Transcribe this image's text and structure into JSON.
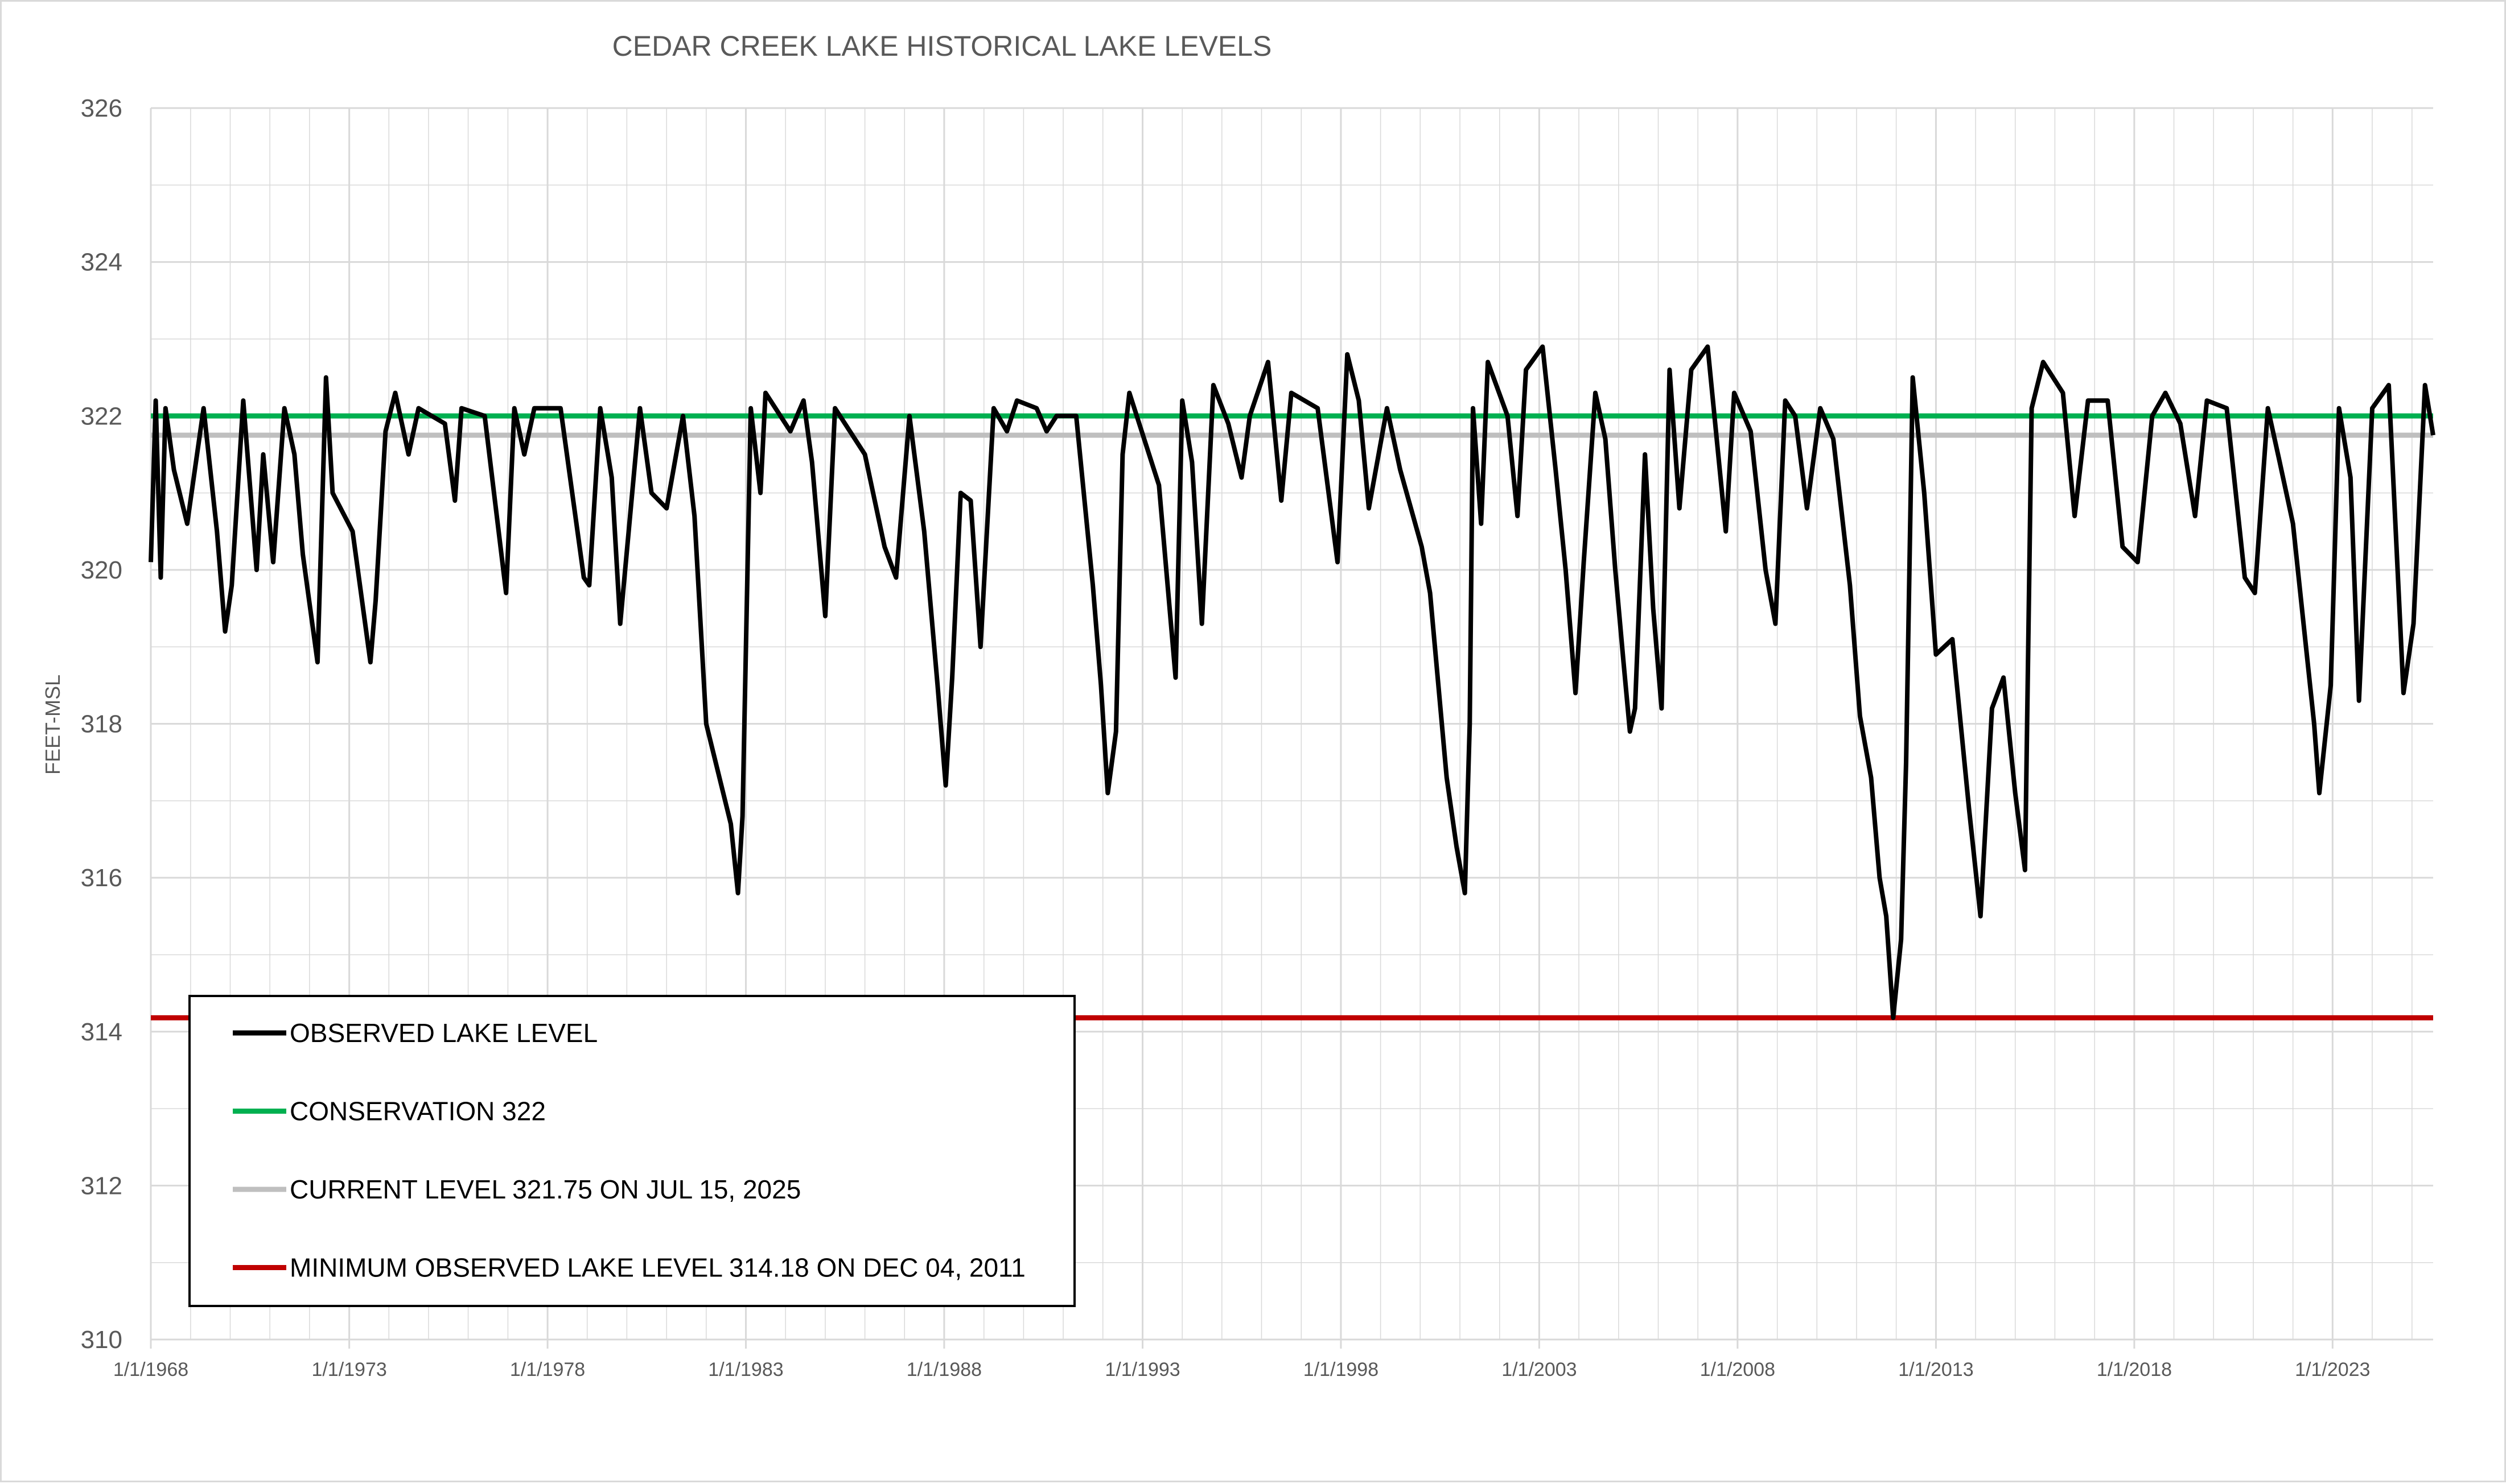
{
  "chart_data": {
    "type": "line",
    "title": "CEDAR CREEK LAKE HISTORICAL LAKE LEVELS",
    "xlabel": "",
    "ylabel": "FEET-MSL",
    "ylim": [
      310,
      326
    ],
    "xlim": [
      "1968-01-01",
      "2025-07-15"
    ],
    "y_ticks": [
      "310",
      "312",
      "314",
      "316",
      "318",
      "320",
      "322",
      "324",
      "326"
    ],
    "x_ticks": [
      {
        "date": "1968-01-01",
        "label": "1/1/1968"
      },
      {
        "date": "1973-01-01",
        "label": "1/1/1973"
      },
      {
        "date": "1978-01-01",
        "label": "1/1/1978"
      },
      {
        "date": "1983-01-01",
        "label": "1/1/1983"
      },
      {
        "date": "1988-01-01",
        "label": "1/1/1988"
      },
      {
        "date": "1993-01-01",
        "label": "1/1/1993"
      },
      {
        "date": "1998-01-01",
        "label": "1/1/1998"
      },
      {
        "date": "2003-01-01",
        "label": "1/1/2003"
      },
      {
        "date": "2008-01-01",
        "label": "1/1/2008"
      },
      {
        "date": "2013-01-01",
        "label": "1/1/2013"
      },
      {
        "date": "2018-01-01",
        "label": "1/1/2018"
      },
      {
        "date": "2023-01-01",
        "label": "1/1/2023"
      }
    ],
    "grid": true,
    "legend_position": "bottom-left",
    "colors": {
      "observed": "#000000",
      "conservation": "#00b050",
      "current": "#bfbfbf",
      "minimum": "#c00000",
      "grid": "#d9d9d9",
      "text": "#595959"
    },
    "series": [
      {
        "name": "OBSERVED LAKE LEVEL",
        "color": "#000000",
        "points": [
          [
            "1968-01-01",
            320.1
          ],
          [
            "1968-02-15",
            322.2
          ],
          [
            "1968-04-01",
            319.9
          ],
          [
            "1968-05-15",
            322.1
          ],
          [
            "1968-08-01",
            321.3
          ],
          [
            "1968-12-01",
            320.6
          ],
          [
            "1969-05-01",
            322.1
          ],
          [
            "1969-09-01",
            320.5
          ],
          [
            "1969-11-15",
            319.2
          ],
          [
            "1970-01-15",
            319.8
          ],
          [
            "1970-05-01",
            322.2
          ],
          [
            "1970-09-01",
            320.0
          ],
          [
            "1970-11-01",
            321.5
          ],
          [
            "1971-02-01",
            320.1
          ],
          [
            "1971-05-15",
            322.1
          ],
          [
            "1971-08-15",
            321.5
          ],
          [
            "1971-11-01",
            320.2
          ],
          [
            "1972-03-15",
            318.8
          ],
          [
            "1972-06-01",
            322.5
          ],
          [
            "1972-08-01",
            321.0
          ],
          [
            "1973-02-01",
            320.5
          ],
          [
            "1973-07-15",
            318.8
          ],
          [
            "1973-09-01",
            319.6
          ],
          [
            "1973-12-01",
            321.8
          ],
          [
            "1974-03-01",
            322.3
          ],
          [
            "1974-07-01",
            321.5
          ],
          [
            "1974-10-01",
            322.1
          ],
          [
            "1975-06-01",
            321.9
          ],
          [
            "1975-09-01",
            320.9
          ],
          [
            "1975-11-01",
            322.1
          ],
          [
            "1976-06-01",
            322.0
          ],
          [
            "1976-12-15",
            319.7
          ],
          [
            "1977-03-01",
            322.1
          ],
          [
            "1977-06-01",
            321.5
          ],
          [
            "1977-09-01",
            322.1
          ],
          [
            "1978-05-01",
            322.1
          ],
          [
            "1978-12-01",
            319.9
          ],
          [
            "1979-01-20",
            319.8
          ],
          [
            "1979-05-01",
            322.1
          ],
          [
            "1979-08-15",
            321.2
          ],
          [
            "1979-11-01",
            319.3
          ],
          [
            "1980-05-01",
            322.1
          ],
          [
            "1980-08-15",
            321.0
          ],
          [
            "1981-01-01",
            320.8
          ],
          [
            "1981-06-01",
            322.0
          ],
          [
            "1981-09-15",
            320.7
          ],
          [
            "1982-01-01",
            318.0
          ],
          [
            "1982-08-15",
            316.7
          ],
          [
            "1982-10-20",
            315.8
          ],
          [
            "1982-12-01",
            316.8
          ],
          [
            "1983-02-15",
            322.1
          ],
          [
            "1983-05-15",
            321.0
          ],
          [
            "1983-07-01",
            322.3
          ],
          [
            "1984-02-15",
            321.8
          ],
          [
            "1984-06-15",
            322.2
          ],
          [
            "1984-09-01",
            321.4
          ],
          [
            "1985-01-01",
            319.4
          ],
          [
            "1985-04-01",
            322.1
          ],
          [
            "1986-01-01",
            321.5
          ],
          [
            "1986-07-01",
            320.3
          ],
          [
            "1986-10-15",
            319.9
          ],
          [
            "1987-02-15",
            322.0
          ],
          [
            "1987-07-01",
            320.5
          ],
          [
            "1987-11-01",
            318.5
          ],
          [
            "1988-01-15",
            317.2
          ],
          [
            "1988-03-15",
            318.6
          ],
          [
            "1988-06-01",
            321.0
          ],
          [
            "1988-09-01",
            320.9
          ],
          [
            "1988-12-01",
            319.0
          ],
          [
            "1989-04-01",
            322.1
          ],
          [
            "1989-08-01",
            321.8
          ],
          [
            "1989-11-01",
            322.2
          ],
          [
            "1990-05-01",
            322.1
          ],
          [
            "1990-08-01",
            321.8
          ],
          [
            "1990-11-01",
            322.0
          ],
          [
            "1991-05-01",
            322.0
          ],
          [
            "1991-10-01",
            319.8
          ],
          [
            "1991-12-15",
            318.5
          ],
          [
            "1992-02-15",
            317.1
          ],
          [
            "1992-05-01",
            317.9
          ],
          [
            "1992-07-01",
            321.5
          ],
          [
            "1992-09-01",
            322.3
          ],
          [
            "1993-06-01",
            321.1
          ],
          [
            "1993-11-01",
            318.6
          ],
          [
            "1994-01-01",
            322.2
          ],
          [
            "1994-04-01",
            321.4
          ],
          [
            "1994-07-01",
            319.3
          ],
          [
            "1994-10-15",
            322.4
          ],
          [
            "1995-03-01",
            321.9
          ],
          [
            "1995-07-01",
            321.2
          ],
          [
            "1995-09-15",
            322.0
          ],
          [
            "1996-03-01",
            322.7
          ],
          [
            "1996-07-01",
            320.9
          ],
          [
            "1996-10-01",
            322.3
          ],
          [
            "1997-06-01",
            322.1
          ],
          [
            "1997-12-01",
            320.1
          ],
          [
            "1998-03-01",
            322.8
          ],
          [
            "1998-06-15",
            322.2
          ],
          [
            "1998-09-15",
            320.8
          ],
          [
            "1999-03-01",
            322.1
          ],
          [
            "1999-07-01",
            321.3
          ],
          [
            "2000-01-15",
            320.3
          ],
          [
            "2000-04-01",
            319.7
          ],
          [
            "2000-09-01",
            317.3
          ],
          [
            "2000-12-01",
            316.4
          ],
          [
            "2001-02-15",
            315.8
          ],
          [
            "2001-04-01",
            318.0
          ],
          [
            "2001-05-01",
            322.1
          ],
          [
            "2001-07-15",
            320.6
          ],
          [
            "2001-09-15",
            322.7
          ],
          [
            "2002-03-15",
            322.0
          ],
          [
            "2002-06-15",
            320.7
          ],
          [
            "2002-09-01",
            322.6
          ],
          [
            "2003-02-01",
            322.9
          ],
          [
            "2003-06-01",
            321.3
          ],
          [
            "2003-09-01",
            320.0
          ],
          [
            "2003-12-01",
            318.4
          ],
          [
            "2004-02-15",
            320.1
          ],
          [
            "2004-06-01",
            322.3
          ],
          [
            "2004-09-01",
            321.7
          ],
          [
            "2004-12-01",
            320.0
          ],
          [
            "2005-02-15",
            318.8
          ],
          [
            "2005-04-15",
            317.9
          ],
          [
            "2005-06-01",
            318.2
          ],
          [
            "2005-09-01",
            321.5
          ],
          [
            "2005-11-15",
            319.5
          ],
          [
            "2006-02-01",
            318.2
          ],
          [
            "2006-04-15",
            322.6
          ],
          [
            "2006-07-15",
            320.8
          ],
          [
            "2006-11-01",
            322.6
          ],
          [
            "2007-04-01",
            322.9
          ],
          [
            "2007-09-15",
            320.5
          ],
          [
            "2007-12-01",
            322.3
          ],
          [
            "2008-05-01",
            321.8
          ],
          [
            "2008-09-15",
            320.0
          ],
          [
            "2008-12-15",
            319.3
          ],
          [
            "2009-03-15",
            322.2
          ],
          [
            "2009-06-15",
            322.0
          ],
          [
            "2009-10-01",
            320.8
          ],
          [
            "2010-02-01",
            322.1
          ],
          [
            "2010-06-01",
            321.7
          ],
          [
            "2010-11-01",
            319.8
          ],
          [
            "2011-02-01",
            318.1
          ],
          [
            "2011-05-15",
            317.3
          ],
          [
            "2011-08-01",
            316.0
          ],
          [
            "2011-10-01",
            315.5
          ],
          [
            "2011-12-04",
            314.18
          ],
          [
            "2012-02-15",
            315.2
          ],
          [
            "2012-04-01",
            317.5
          ],
          [
            "2012-06-01",
            322.5
          ],
          [
            "2012-09-15",
            321.0
          ],
          [
            "2013-01-01",
            318.9
          ],
          [
            "2013-06-01",
            319.1
          ],
          [
            "2013-11-01",
            316.9
          ],
          [
            "2014-02-15",
            315.5
          ],
          [
            "2014-06-01",
            318.2
          ],
          [
            "2014-09-15",
            318.6
          ],
          [
            "2015-01-01",
            317.1
          ],
          [
            "2015-04-01",
            316.1
          ],
          [
            "2015-06-01",
            322.1
          ],
          [
            "2015-09-15",
            322.7
          ],
          [
            "2016-03-15",
            322.3
          ],
          [
            "2016-07-01",
            320.7
          ],
          [
            "2016-11-01",
            322.2
          ],
          [
            "2017-05-01",
            322.2
          ],
          [
            "2017-09-15",
            320.3
          ],
          [
            "2018-02-01",
            320.1
          ],
          [
            "2018-06-15",
            322.0
          ],
          [
            "2018-10-15",
            322.3
          ],
          [
            "2019-03-01",
            321.9
          ],
          [
            "2019-07-15",
            320.7
          ],
          [
            "2019-11-01",
            322.2
          ],
          [
            "2020-05-01",
            322.1
          ],
          [
            "2020-10-15",
            319.9
          ],
          [
            "2021-01-15",
            319.7
          ],
          [
            "2021-05-15",
            322.1
          ],
          [
            "2021-09-01",
            321.4
          ],
          [
            "2022-01-01",
            320.6
          ],
          [
            "2022-07-15",
            318.0
          ],
          [
            "2022-09-01",
            317.1
          ],
          [
            "2022-12-15",
            318.5
          ],
          [
            "2023-03-01",
            322.1
          ],
          [
            "2023-06-15",
            321.2
          ],
          [
            "2023-09-01",
            318.3
          ],
          [
            "2024-01-01",
            322.1
          ],
          [
            "2024-06-01",
            322.4
          ],
          [
            "2024-10-15",
            318.4
          ],
          [
            "2025-01-15",
            319.3
          ],
          [
            "2025-05-01",
            322.4
          ],
          [
            "2025-07-15",
            321.75
          ]
        ]
      },
      {
        "name": "CONSERVATION 322",
        "color": "#00b050",
        "constant": 322
      },
      {
        "name": "CURRENT LEVEL 321.75 ON JUL 15, 2025",
        "color": "#bfbfbf",
        "constant": 321.75
      },
      {
        "name": "MINIMUM OBSERVED LAKE LEVEL 314.18 ON DEC 04, 2011",
        "color": "#c00000",
        "constant": 314.18
      }
    ]
  }
}
